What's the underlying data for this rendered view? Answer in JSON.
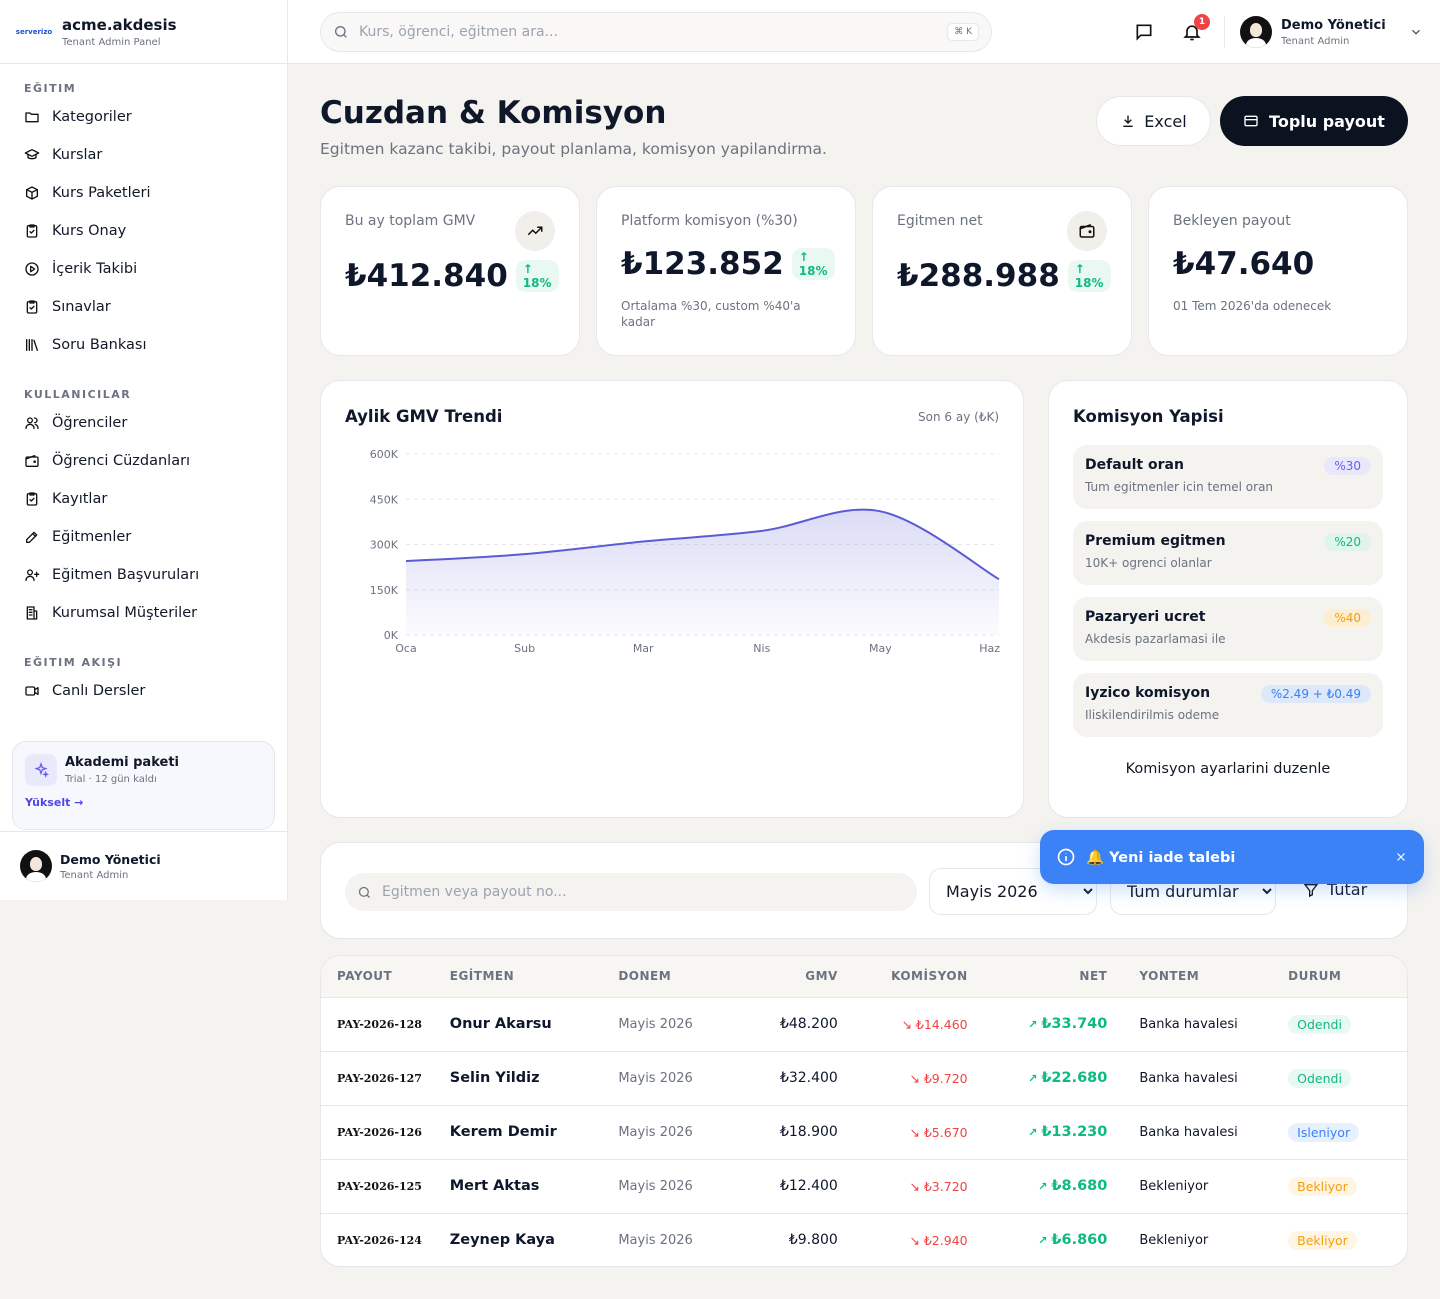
{
  "brand": {
    "logo_text": "serverizo",
    "name": "acme.akdesis",
    "sub": "Tenant Admin Panel"
  },
  "sidebar": {
    "sections": [
      {
        "heading": "EĞITIM",
        "items": [
          "Kategoriler",
          "Kurslar",
          "Kurs Paketleri",
          "Kurs Onay",
          "İçerik Takibi",
          "Sınavlar",
          "Soru Bankası"
        ]
      },
      {
        "heading": "KULLANICILAR",
        "items": [
          "Öğrenciler",
          "Öğrenci Cüzdanları",
          "Kayıtlar",
          "Eğitmenler",
          "Eğitmen Başvuruları",
          "Kurumsal Müşteriler"
        ]
      },
      {
        "heading": "EĞITIM AKIŞI",
        "items": [
          "Canlı Dersler"
        ]
      }
    ],
    "upgrade": {
      "title": "Akademi paketi",
      "sub": "Trial · 12 gün kaldı",
      "link": "Yükselt →"
    },
    "user": {
      "name": "Demo Yönetici",
      "role": "Tenant Admin"
    }
  },
  "topbar": {
    "search_placeholder": "Kurs, öğrenci, eğitmen ara...",
    "shortcut": "⌘ K",
    "notif_count": "1",
    "user": {
      "name": "Demo Yönetici",
      "role": "Tenant Admin"
    }
  },
  "page": {
    "title": "Cuzdan & Komisyon",
    "subtitle": "Egitmen kazanc takibi, payout planlama, komisyon yapilandirma.",
    "excel_label": "Excel",
    "payout_label": "Toplu payout"
  },
  "stats": [
    {
      "label": "Bu ay toplam GMV",
      "value": "₺412.840",
      "delta": "18%",
      "note": "",
      "icon": "trending-up-icon"
    },
    {
      "label": "Platform komisyon (%30)",
      "value": "₺123.852",
      "delta": "18%",
      "note": "Ortalama %30, custom %40'a kadar",
      "icon": ""
    },
    {
      "label": "Egitmen net",
      "value": "₺288.988",
      "delta": "18%",
      "note": "",
      "icon": "wallet-icon"
    },
    {
      "label": "Bekleyen payout",
      "value": "₺47.640",
      "delta": "",
      "note": "01 Tem 2026'da odenecek",
      "icon": ""
    }
  ],
  "chart": {
    "title": "Aylik GMV Trendi",
    "subtitle": "Son 6 ay (₺K)"
  },
  "chart_data": {
    "type": "area",
    "categories": [
      "Oca",
      "Sub",
      "Mar",
      "Nis",
      "May",
      "Haz"
    ],
    "series": [
      {
        "values": [
          245,
          268,
          310,
          345,
          410,
          185
        ]
      }
    ],
    "ylim": [
      0,
      600
    ],
    "yticks": [
      "0K",
      "150K",
      "300K",
      "450K",
      "600K"
    ],
    "color": "#5b5bd6",
    "grid": true
  },
  "commission": {
    "title": "Komisyon Yapisi",
    "items": [
      {
        "name": "Default oran",
        "desc": "Tum egitmenler icin temel oran",
        "pill": "%30",
        "bg": "#e8e7fb",
        "fg": "#6d5cf6"
      },
      {
        "name": "Premium egitmen",
        "desc": "10K+ ogrenci olanlar",
        "pill": "%20",
        "bg": "#dff4ea",
        "fg": "#10b981"
      },
      {
        "name": "Pazaryeri ucret",
        "desc": "Akdesis pazarlamasi ile",
        "pill": "%40",
        "bg": "#fdeed2",
        "fg": "#f59e0b"
      },
      {
        "name": "Iyzico komisyon",
        "desc": "Iliskilendirilmis odeme",
        "pill": "%2.49 + ₺0.49",
        "bg": "#dde8fb",
        "fg": "#3b82f6"
      }
    ],
    "link": "Komisyon ayarlarini duzenle"
  },
  "filters": {
    "search_placeholder": "Egitmen veya payout no...",
    "period": "Mayis 2026",
    "status": "Tum durumlar",
    "tutar": "Tutar"
  },
  "toast": {
    "text": "🔔 Yeni iade talebi"
  },
  "table": {
    "headers": [
      "PAYOUT",
      "EGİTMEN",
      "DONEM",
      "GMV",
      "KOMİSYON",
      "NET",
      "YONTEM",
      "DURUM"
    ],
    "rows": [
      {
        "id": "PAY-2026-128",
        "name": "Onur Akarsu",
        "period": "Mayis 2026",
        "gmv": "₺48.200",
        "kom": "₺14.460",
        "net": "₺33.740",
        "method": "Banka havalesi",
        "status": "Odendi",
        "status_type": "green"
      },
      {
        "id": "PAY-2026-127",
        "name": "Selin Yildiz",
        "period": "Mayis 2026",
        "gmv": "₺32.400",
        "kom": "₺9.720",
        "net": "₺22.680",
        "method": "Banka havalesi",
        "status": "Odendi",
        "status_type": "green"
      },
      {
        "id": "PAY-2026-126",
        "name": "Kerem Demir",
        "period": "Mayis 2026",
        "gmv": "₺18.900",
        "kom": "₺5.670",
        "net": "₺13.230",
        "method": "Banka havalesi",
        "status": "Isleniyor",
        "status_type": "blue"
      },
      {
        "id": "PAY-2026-125",
        "name": "Mert Aktas",
        "period": "Mayis 2026",
        "gmv": "₺12.400",
        "kom": "₺3.720",
        "net": "₺8.680",
        "method": "Bekleniyor",
        "status": "Bekliyor",
        "status_type": "amber"
      },
      {
        "id": "PAY-2026-124",
        "name": "Zeynep Kaya",
        "period": "Mayis 2026",
        "gmv": "₺9.800",
        "kom": "₺2.940",
        "net": "₺6.860",
        "method": "Bekleniyor",
        "status": "Bekliyor",
        "status_type": "amber"
      }
    ]
  }
}
